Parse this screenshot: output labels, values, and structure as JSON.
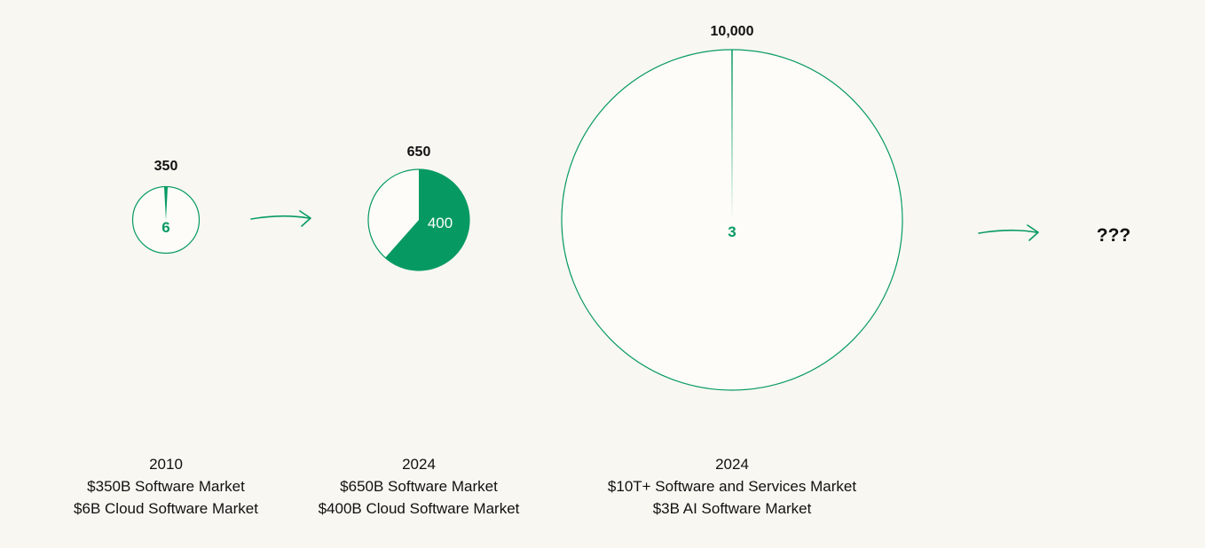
{
  "colors": {
    "background": "#f9f7f1",
    "accent": "#069a62",
    "circle_fill": "#fdfcf8",
    "text": "#111111",
    "slice_label_on_accent": "#ffffff"
  },
  "chart_data": {
    "type": "pie",
    "title": "",
    "pies": [
      {
        "total": 350,
        "total_label": "350",
        "slice_value": 6,
        "slice_label": "6",
        "caption": [
          "2010",
          "$350B Software Market",
          "$6B Cloud Software Market"
        ]
      },
      {
        "total": 650,
        "total_label": "650",
        "slice_value": 400,
        "slice_label": "400",
        "caption": [
          "2024",
          "$650B Software Market",
          "$400B Cloud Software Market"
        ]
      },
      {
        "total": 10000,
        "total_label": "10,000",
        "slice_value": 3,
        "slice_label": "3",
        "caption": [
          "2024",
          "$10T+ Software and Services Market",
          "$3B AI Software Market"
        ]
      }
    ],
    "connectors": [
      {
        "from": 0,
        "to": 1
      },
      {
        "from": 2,
        "to": "unknown"
      }
    ],
    "unknown_label": "???"
  }
}
